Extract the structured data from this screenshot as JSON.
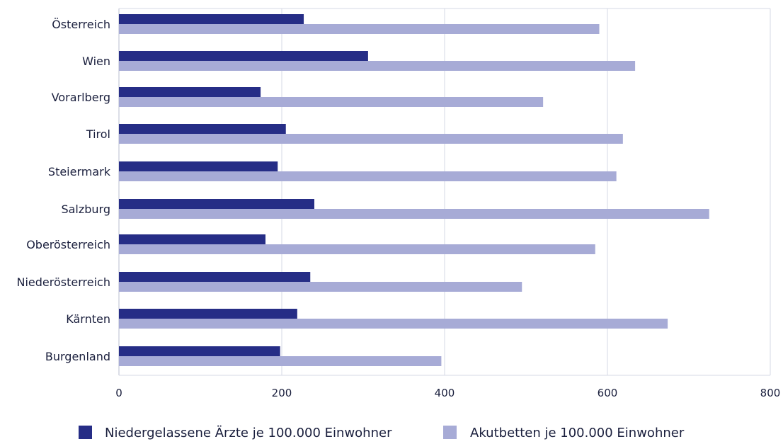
{
  "chart_data": {
    "type": "bar",
    "orientation": "horizontal",
    "categories": [
      "Österreich",
      "Wien",
      "Vorarlberg",
      "Tirol",
      "Steiermark",
      "Salzburg",
      "Oberösterreich",
      "Niederösterreich",
      "Kärnten",
      "Burgenland"
    ],
    "series": [
      {
        "name": "Niedergelassene Ärzte je 100.000 Einwohner",
        "color": "#262d86",
        "values": [
          227,
          306,
          174,
          205,
          195,
          240,
          180,
          235,
          219,
          198
        ]
      },
      {
        "name": "Akutbetten je 100.000 Einwohner",
        "color": "#a7abd6",
        "values": [
          590,
          634,
          521,
          619,
          611,
          725,
          585,
          495,
          674,
          396
        ]
      }
    ],
    "xlim": [
      0,
      800
    ],
    "xticks": [
      0,
      200,
      400,
      600,
      800
    ],
    "grid": true,
    "legend_position": "bottom"
  }
}
